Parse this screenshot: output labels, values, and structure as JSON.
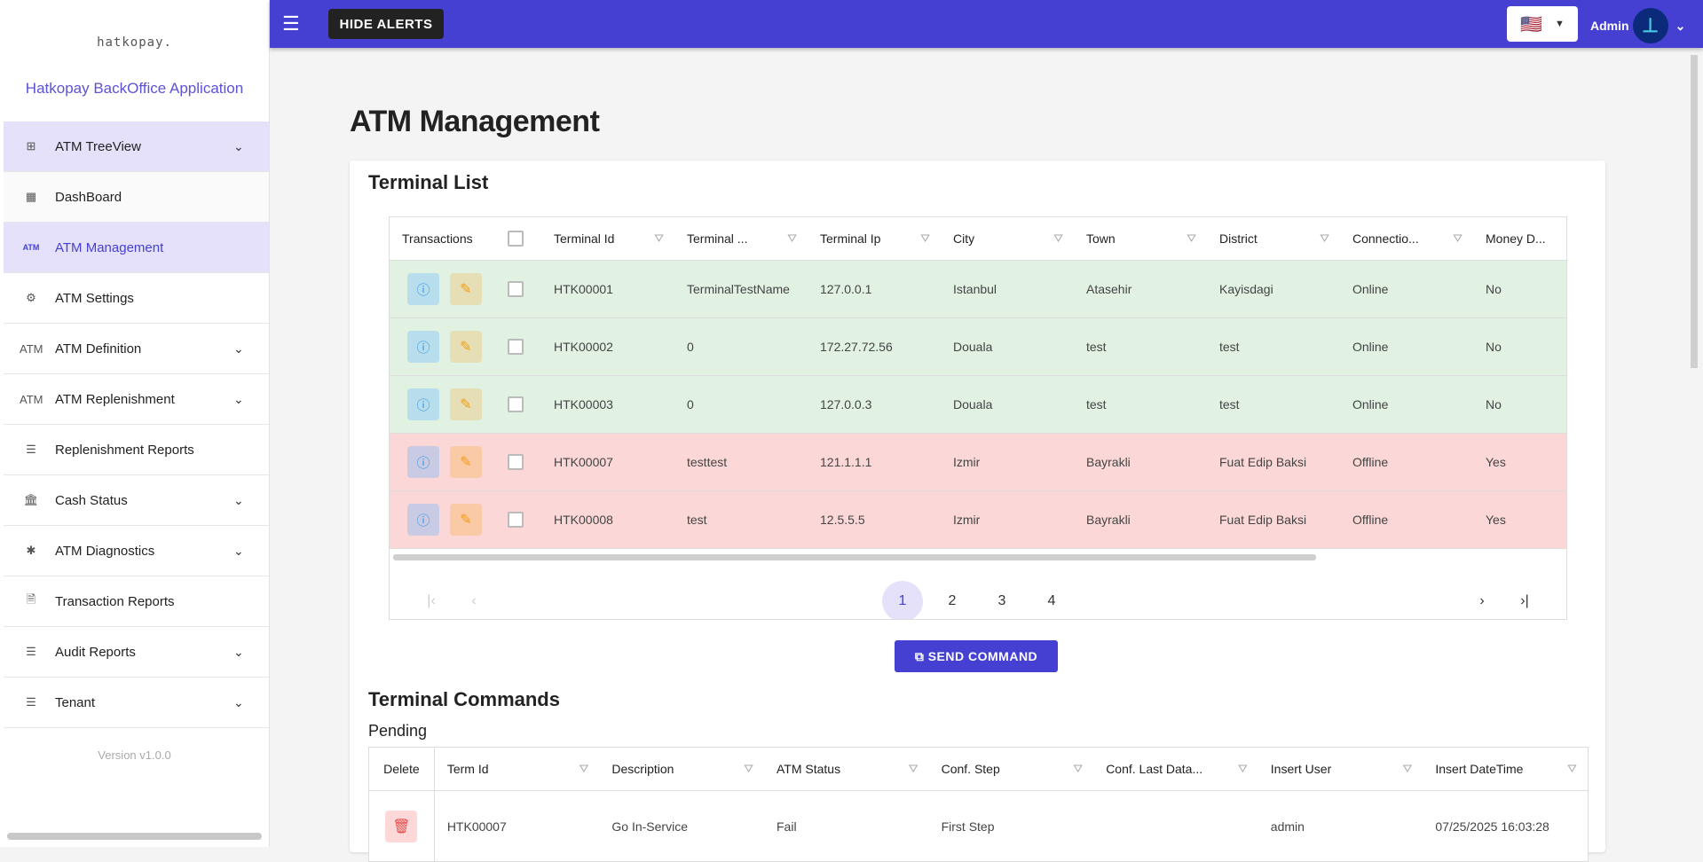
{
  "sidebar": {
    "logo": "hatkopay.",
    "app_title": "Hatkopay BackOffice Application",
    "version": "Version v1.0.0",
    "items": [
      {
        "label": "ATM TreeView",
        "icon": "tree-icon",
        "glyph": "⊞",
        "chevron": true
      },
      {
        "label": "DashBoard",
        "icon": "dashboard-icon",
        "glyph": "▦",
        "chevron": false
      },
      {
        "label": "ATM Management",
        "icon": "atm-icon",
        "glyph": "ATM",
        "chevron": false
      },
      {
        "label": "ATM Settings",
        "icon": "gear-icon",
        "glyph": "⚙",
        "chevron": false
      },
      {
        "label": "ATM Definition",
        "icon": "atm-icon",
        "glyph": "ATM",
        "chevron": true
      },
      {
        "label": "ATM Replenishment",
        "icon": "atm-icon",
        "glyph": "ATM",
        "chevron": true
      },
      {
        "label": "Replenishment Reports",
        "icon": "list-icon",
        "glyph": "☰",
        "chevron": false
      },
      {
        "label": "Cash Status",
        "icon": "bank-icon",
        "glyph": "🏛",
        "chevron": true
      },
      {
        "label": "ATM Diagnostics",
        "icon": "bug-icon",
        "glyph": "✱",
        "chevron": true
      },
      {
        "label": "Transaction Reports",
        "icon": "receipt-icon",
        "glyph": "🗎",
        "chevron": false
      },
      {
        "label": "Audit Reports",
        "icon": "list-icon",
        "glyph": "☰",
        "chevron": true
      },
      {
        "label": "Tenant",
        "icon": "list-icon",
        "glyph": "☰",
        "chevron": true
      }
    ]
  },
  "topbar": {
    "hide_alerts": "HIDE ALERTS",
    "flag": "🇺🇸",
    "user": "Admin",
    "avatar": "⊥"
  },
  "page": {
    "title": "ATM Management",
    "terminal_list": "Terminal List",
    "send_command": "SEND COMMAND",
    "terminal_commands": "Terminal Commands",
    "pending": "Pending"
  },
  "terminals": {
    "headers": [
      "Transactions",
      "Terminal Id",
      "Terminal ...",
      "Terminal Ip",
      "City",
      "Town",
      "District",
      "Connectio...",
      "Money D..."
    ],
    "rows": [
      {
        "status": "ok",
        "cells": [
          "HTK00001",
          "TerminalTestName",
          "127.0.0.1",
          "Istanbul",
          "Atasehir",
          "Kayisdagi",
          "Online",
          "No"
        ]
      },
      {
        "status": "ok",
        "cells": [
          "HTK00002",
          "0",
          "172.27.72.56",
          "Douala",
          "test",
          "test",
          "Online",
          "No"
        ]
      },
      {
        "status": "ok",
        "cells": [
          "HTK00003",
          "0",
          "127.0.0.3",
          "Douala",
          "test",
          "test",
          "Online",
          "No"
        ]
      },
      {
        "status": "bad",
        "cells": [
          "HTK00007",
          "testtest",
          "121.1.1.1",
          "Izmir",
          "Bayrakli",
          "Fuat Edip Baksi",
          "Offline",
          "Yes"
        ]
      },
      {
        "status": "bad",
        "cells": [
          "HTK00008",
          "test",
          "12.5.5.5",
          "Izmir",
          "Bayrakli",
          "Fuat Edip Baksi",
          "Offline",
          "Yes"
        ]
      }
    ],
    "pages": [
      "1",
      "2",
      "3",
      "4"
    ],
    "current_page": "1"
  },
  "commands": {
    "headers": [
      "Delete",
      "Term Id",
      "Description",
      "ATM Status",
      "Conf. Step",
      "Conf. Last Data...",
      "Insert User",
      "Insert DateTime"
    ],
    "rows": [
      {
        "cells": [
          "HTK00007",
          "Go In-Service",
          "Fail",
          "First Step",
          "",
          "admin",
          "07/25/2025 16:03:28"
        ]
      }
    ]
  },
  "colors": {
    "accent": "#4540d2",
    "online_row": "#e1f1e2",
    "offline_row": "#fbd8d7"
  }
}
